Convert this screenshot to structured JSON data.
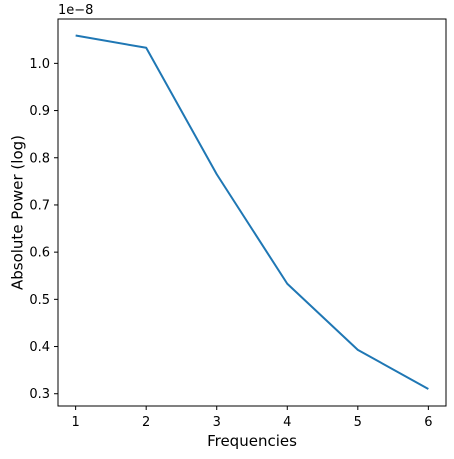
{
  "chart_data": {
    "type": "line",
    "xlabel": "Frequencies",
    "ylabel": "Absolute Power (log)",
    "offset_text": "1e−8",
    "x": [
      1,
      2,
      3,
      4,
      5,
      6
    ],
    "series": [
      {
        "values": [
          1.059,
          1.033,
          0.765,
          0.533,
          0.393,
          0.31
        ],
        "color": "#1f77b4"
      }
    ],
    "xlim": [
      0.75,
      6.25
    ],
    "ylim": [
      0.274,
      1.094
    ],
    "xticks": [
      1,
      2,
      3,
      4,
      5,
      6
    ],
    "xtick_labels": [
      "1",
      "2",
      "3",
      "4",
      "5",
      "6"
    ],
    "yticks": [
      0.3,
      0.4,
      0.5,
      0.6,
      0.7,
      0.8,
      0.9,
      1.0
    ],
    "ytick_labels": [
      "0.3",
      "0.4",
      "0.5",
      "0.6",
      "0.7",
      "0.8",
      "0.9",
      "1.0"
    ],
    "grid": false,
    "legend": "none"
  }
}
